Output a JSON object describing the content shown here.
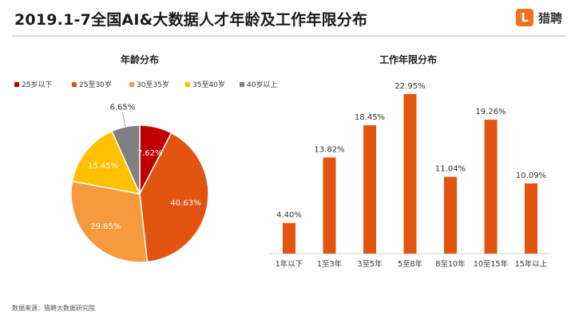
{
  "page": {
    "title": "2019.1-7全国AI&大数据人才年龄及工作年限分布",
    "logo_mark": "L",
    "logo_text": "猎聘",
    "source": "数据来源：猎聘大数据研究院"
  },
  "colors": {
    "dark_red": "#c00000",
    "orange": "#e2540f",
    "light_orange": "#f79a3e",
    "yellow": "#ffc000",
    "gray": "#808080",
    "bar": "#e2540f",
    "brand": "#f3701e"
  },
  "chart_data": [
    {
      "type": "pie",
      "title": "年龄分布",
      "legend_position": "top",
      "categories": [
        "25岁以下",
        "25至30岁",
        "30至35岁",
        "35至40岁",
        "40岁以上"
      ],
      "values": [
        7.62,
        40.63,
        29.65,
        15.45,
        6.65
      ],
      "labels": [
        "7.62%",
        "40.63%",
        "29.65%",
        "15.45%",
        "6.65%"
      ],
      "colors": [
        "#c00000",
        "#e2540f",
        "#f79a3e",
        "#ffc000",
        "#808080"
      ]
    },
    {
      "type": "bar",
      "title": "工作年限分布",
      "categories": [
        "1年以下",
        "1至3年",
        "3至5年",
        "5至8年",
        "8至10年",
        "10至15年",
        "15年以上"
      ],
      "values": [
        4.4,
        13.82,
        18.45,
        22.95,
        11.04,
        19.26,
        10.09
      ],
      "labels": [
        "4.40%",
        "13.82%",
        "18.45%",
        "22.95%",
        "11.04%",
        "19.26%",
        "10.09%"
      ],
      "ylim": [
        0,
        25
      ],
      "color": "#e2540f",
      "grid": false
    }
  ]
}
